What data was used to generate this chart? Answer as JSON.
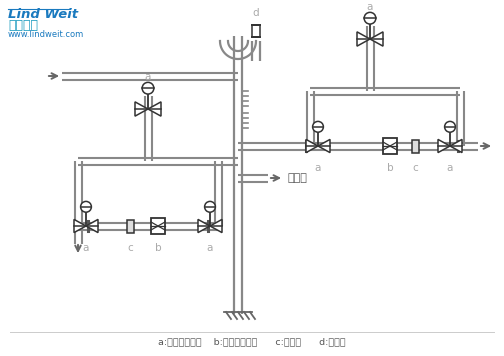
{
  "bg_color": "#ffffff",
  "line_color": "#555555",
  "logo_text1": "Lind Weit",
  "logo_text2": "林德佳特",
  "logo_text3": "www.lindweit.com",
  "logo_color1": "#1a7abf",
  "logo_color2": "#1a9abf",
  "caption": "a:波纹管截止阀    b:倒吹桶疏水阀      c:止回阀      d:排气阀",
  "pipe_color": "#888888",
  "label_color": "#aaaaaa",
  "arrow_color": "#666666"
}
